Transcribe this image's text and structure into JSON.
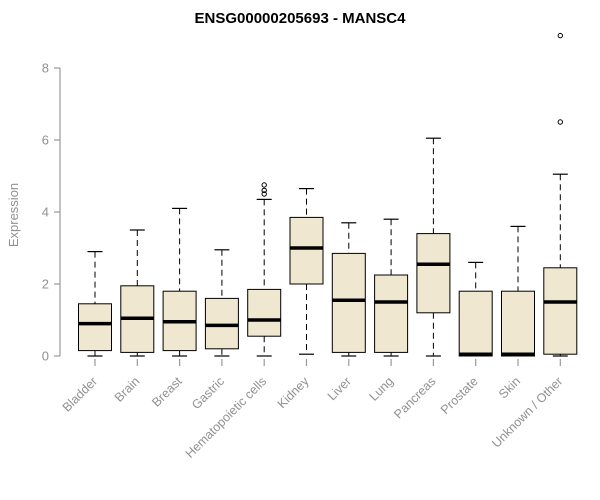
{
  "chart_data": {
    "type": "boxplot",
    "title": "ENSG00000205693 - MANSC4",
    "ylabel": "Expression",
    "xlabel": "",
    "ylim": [
      0,
      9.2
    ],
    "yticks": [
      0,
      2,
      4,
      6,
      8
    ],
    "grid": false,
    "legend": "none",
    "colors": {
      "box_fill": "#EFE7CF",
      "box_border": "#000000",
      "median": "#000000",
      "whisker": "#000000",
      "axis": "#999999",
      "tick_label": "#919191",
      "title": "#000000"
    },
    "categories": [
      "Bladder",
      "Brain",
      "Breast",
      "Gastric",
      "Hematopoietic cells",
      "Kidney",
      "Liver",
      "Lung",
      "Pancreas",
      "Prostate",
      "Skin",
      "Unknown / Other"
    ],
    "boxes": [
      {
        "category": "Bladder",
        "low": 0,
        "q1": 0.15,
        "median": 0.9,
        "q3": 1.45,
        "high": 2.9,
        "outliers": []
      },
      {
        "category": "Brain",
        "low": 0,
        "q1": 0.1,
        "median": 1.05,
        "q3": 1.95,
        "high": 3.5,
        "outliers": []
      },
      {
        "category": "Breast",
        "low": 0,
        "q1": 0.15,
        "median": 0.95,
        "q3": 1.8,
        "high": 4.1,
        "outliers": []
      },
      {
        "category": "Gastric",
        "low": 0,
        "q1": 0.2,
        "median": 0.85,
        "q3": 1.6,
        "high": 2.95,
        "outliers": []
      },
      {
        "category": "Hematopoietic cells",
        "low": 0,
        "q1": 0.55,
        "median": 1.0,
        "q3": 1.85,
        "high": 4.35,
        "outliers": [
          4.5,
          4.6,
          4.75
        ]
      },
      {
        "category": "Kidney",
        "low": 0.05,
        "q1": 2.0,
        "median": 3.0,
        "q3": 3.85,
        "high": 4.65,
        "outliers": []
      },
      {
        "category": "Liver",
        "low": 0,
        "q1": 0.1,
        "median": 1.55,
        "q3": 2.85,
        "high": 3.7,
        "outliers": []
      },
      {
        "category": "Lung",
        "low": 0,
        "q1": 0.1,
        "median": 1.5,
        "q3": 2.25,
        "high": 3.8,
        "outliers": []
      },
      {
        "category": "Pancreas",
        "low": 0,
        "q1": 1.2,
        "median": 2.55,
        "q3": 3.4,
        "high": 6.05,
        "outliers": []
      },
      {
        "category": "Prostate",
        "low": 0,
        "q1": 0.0,
        "median": 0.05,
        "q3": 1.8,
        "high": 2.6,
        "outliers": []
      },
      {
        "category": "Skin",
        "low": 0,
        "q1": 0.0,
        "median": 0.05,
        "q3": 1.8,
        "high": 3.6,
        "outliers": []
      },
      {
        "category": "Unknown / Other",
        "low": 0,
        "q1": 0.05,
        "median": 1.5,
        "q3": 2.45,
        "high": 5.05,
        "outliers": [
          6.5,
          8.9
        ]
      }
    ]
  }
}
